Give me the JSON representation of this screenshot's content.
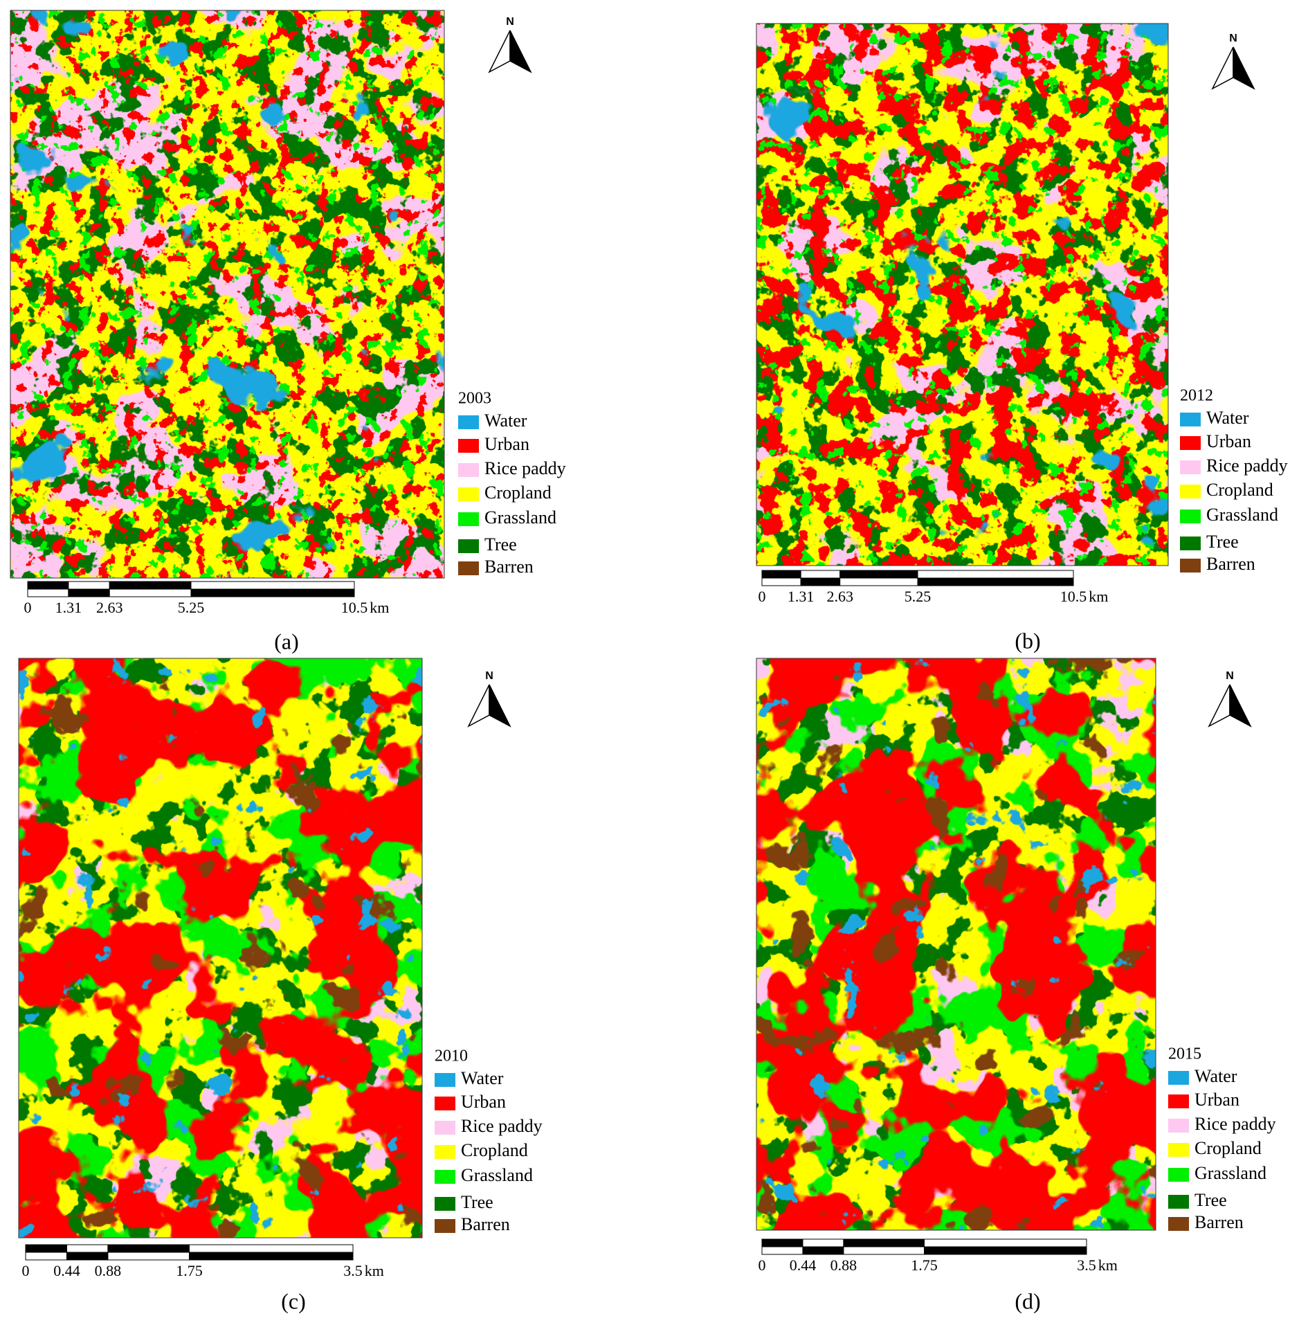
{
  "north": "N",
  "legend": [
    {
      "name": "Water",
      "color": "#1aa7e0"
    },
    {
      "name": "Urban",
      "color": "#ff0000"
    },
    {
      "name": "Rice paddy",
      "color": "#ffc8f0"
    },
    {
      "name": "Cropland",
      "color": "#ffff00"
    },
    {
      "name": "Grassland",
      "color": "#00f000"
    },
    {
      "name": "Tree",
      "color": "#007800"
    },
    {
      "name": "Barren",
      "color": "#7f4010"
    }
  ],
  "panels": [
    {
      "label": "(a)",
      "year": "2003",
      "scale": {
        "ticks": [
          0,
          1.31,
          2.63,
          5.25,
          10.5
        ],
        "unit": "km"
      }
    },
    {
      "label": "(b)",
      "year": "2012",
      "scale": {
        "ticks": [
          0,
          1.31,
          2.63,
          5.25,
          10.5
        ],
        "unit": "km"
      }
    },
    {
      "label": "(c)",
      "year": "2010",
      "scale": {
        "ticks": [
          0,
          0.44,
          0.88,
          1.75,
          3.5
        ],
        "unit": "km"
      }
    },
    {
      "label": "(d)",
      "year": "2015",
      "scale": {
        "ticks": [
          0,
          0.44,
          0.88,
          1.75,
          3.5
        ],
        "unit": "km"
      }
    }
  ]
}
